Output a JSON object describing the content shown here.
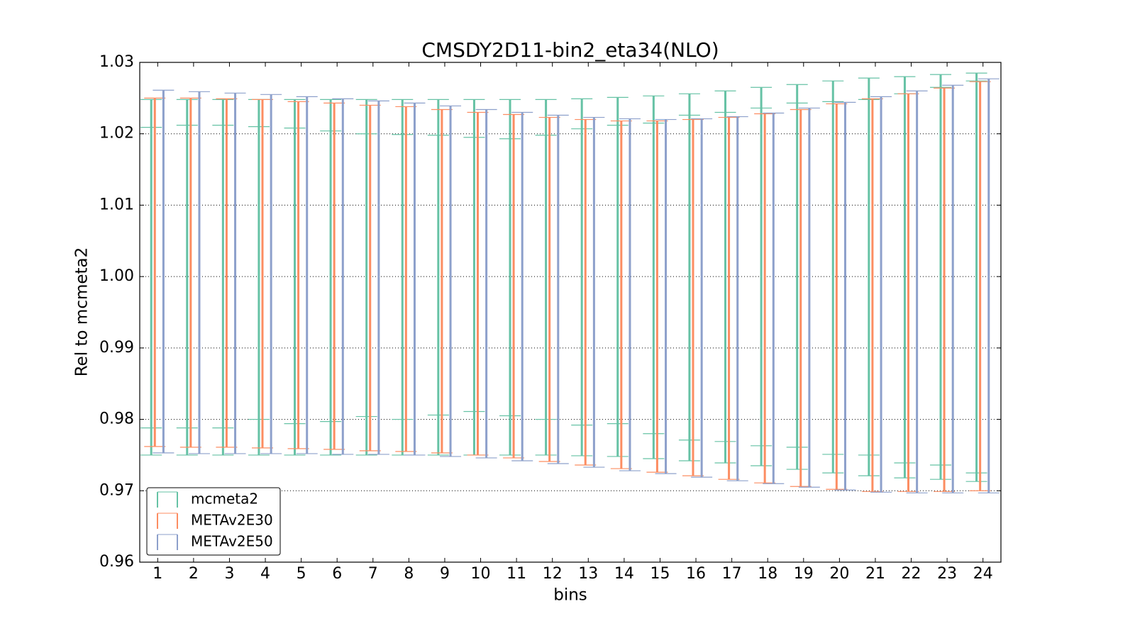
{
  "chart_data": {
    "type": "errorbar",
    "title": "CMSDY2D11-bin2_eta34(NLO)",
    "x_label": "bins",
    "y_label": "Rel to mcmeta2",
    "x": [
      1,
      2,
      3,
      4,
      5,
      6,
      7,
      8,
      9,
      10,
      11,
      12,
      13,
      14,
      15,
      16,
      17,
      18,
      19,
      20,
      21,
      22,
      23,
      24
    ],
    "xlim": [
      0.5,
      24.5
    ],
    "xticks": [
      1,
      2,
      3,
      4,
      5,
      6,
      7,
      8,
      9,
      10,
      11,
      12,
      13,
      14,
      15,
      16,
      17,
      18,
      19,
      20,
      21,
      22,
      23,
      24
    ],
    "ylim": [
      0.96,
      1.03
    ],
    "yticks": [
      0.96,
      0.97,
      0.98,
      0.99,
      {
        "value": 1,
        "label": "1.00"
      },
      1.01,
      1.02,
      1.03
    ],
    "grid": true,
    "legend": "lower left",
    "series": [
      {
        "name": "mcmeta2",
        "color": "#66c2a5",
        "upper": [
          1.0248,
          1.0248,
          1.0248,
          1.0248,
          1.0248,
          1.0248,
          1.0248,
          1.0248,
          1.0248,
          1.0248,
          1.0248,
          1.0248,
          1.0249,
          1.0251,
          1.0253,
          1.0256,
          1.026,
          1.0265,
          1.0269,
          1.0274,
          1.0278,
          1.028,
          1.0283,
          1.0285
        ],
        "lower": [
          0.975,
          0.975,
          0.975,
          0.975,
          0.975,
          0.975,
          0.975,
          0.975,
          0.975,
          0.975,
          0.975,
          0.975,
          0.9749,
          0.9748,
          0.9745,
          0.9742,
          0.9739,
          0.9735,
          0.973,
          0.9725,
          0.9721,
          0.9718,
          0.9716,
          0.9713
        ],
        "inner_upper": [
          1.0209,
          1.0212,
          1.0212,
          1.021,
          1.0208,
          1.0204,
          1.02,
          1.0199,
          1.0198,
          1.0195,
          1.0193,
          1.0198,
          1.0207,
          1.0212,
          1.0215,
          1.0226,
          1.023,
          1.0236,
          1.0243,
          1.0245,
          1.0248,
          1.0256,
          1.0265,
          1.0274
        ],
        "inner_lower": [
          0.9788,
          0.9788,
          0.9788,
          0.98,
          0.9794,
          0.9797,
          0.9804,
          0.98,
          0.9806,
          0.9811,
          0.9805,
          0.98,
          0.9792,
          0.9794,
          0.978,
          0.9771,
          0.9769,
          0.9763,
          0.9761,
          0.9751,
          0.975,
          0.9739,
          0.9736,
          0.9725
        ]
      },
      {
        "name": "METAv2E30",
        "color": "#fc8d62",
        "upper": [
          1.025,
          1.025,
          1.0249,
          1.0248,
          1.0245,
          1.0243,
          1.024,
          1.0238,
          1.0234,
          1.023,
          1.0227,
          1.0223,
          1.022,
          1.0218,
          1.0218,
          1.022,
          1.0223,
          1.0228,
          1.0234,
          1.0242,
          1.0249,
          1.0256,
          1.0264,
          1.0273
        ],
        "lower": [
          0.9762,
          0.9761,
          0.9761,
          0.976,
          0.9759,
          0.9758,
          0.9756,
          0.9755,
          0.9753,
          0.975,
          0.9746,
          0.9741,
          0.9736,
          0.9731,
          0.9726,
          0.9721,
          0.9716,
          0.9711,
          0.9706,
          0.9702,
          0.9699,
          0.9699,
          0.9699,
          0.97
        ]
      },
      {
        "name": "METAv2E50",
        "color": "#8da0cb",
        "upper": [
          1.0261,
          1.0259,
          1.0257,
          1.0255,
          1.0252,
          1.0249,
          1.0246,
          1.0243,
          1.0239,
          1.0234,
          1.023,
          1.0226,
          1.0223,
          1.0221,
          1.022,
          1.0221,
          1.0224,
          1.0229,
          1.0236,
          1.0244,
          1.0252,
          1.026,
          1.0268,
          1.0277
        ],
        "lower": [
          0.9753,
          0.9752,
          0.9752,
          0.9752,
          0.9752,
          0.9751,
          0.9751,
          0.975,
          0.9748,
          0.9746,
          0.9742,
          0.9738,
          0.9733,
          0.9728,
          0.9724,
          0.9719,
          0.9714,
          0.971,
          0.9705,
          0.9701,
          0.9698,
          0.9697,
          0.9697,
          0.9697
        ]
      }
    ]
  }
}
